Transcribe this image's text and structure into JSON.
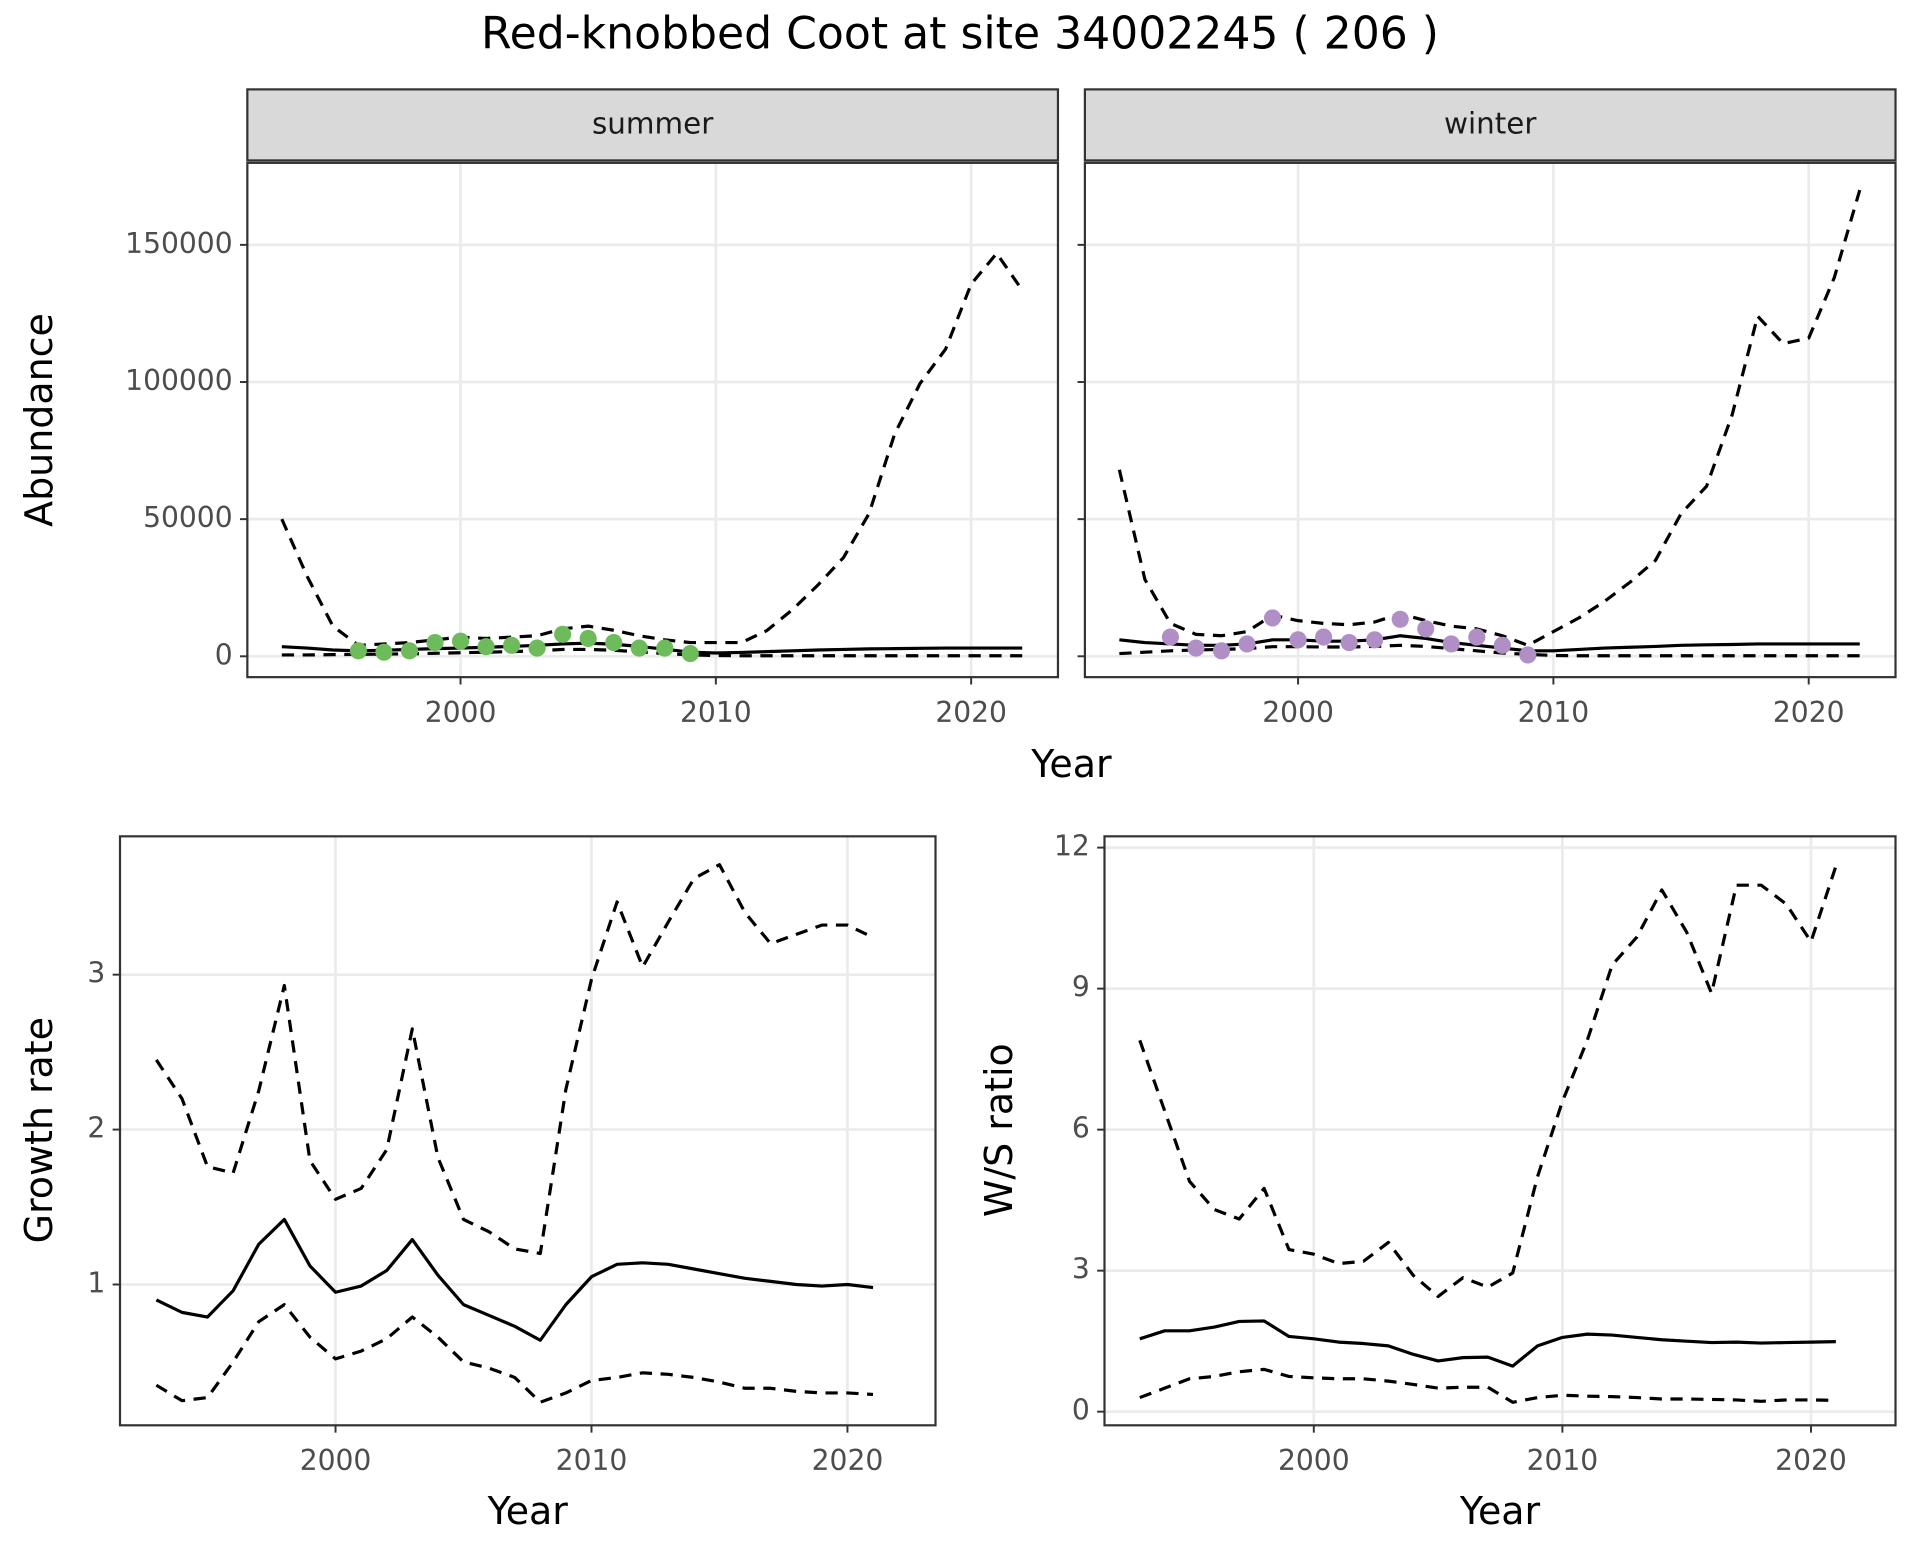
{
  "title": "Red-knobbed Coot at site 34002245 ( 206 )",
  "chart_data": [
    {
      "type": "line",
      "facet": "summer",
      "ylabel": "Abundance",
      "xlabel": "Year",
      "xlim": [
        1991.65,
        2023.4
      ],
      "xticks": [
        2000,
        2010,
        2020
      ],
      "ylim": [
        -7600,
        179900
      ],
      "yticks": [
        0,
        50000,
        100000,
        150000
      ],
      "grid": true,
      "x": [
        1993,
        1994,
        1995,
        1996,
        1997,
        1998,
        1999,
        2000,
        2001,
        2002,
        2003,
        2004,
        2005,
        2006,
        2007,
        2008,
        2009,
        2010,
        2011,
        2012,
        2013,
        2014,
        2015,
        2016,
        2017,
        2018,
        2019,
        2020,
        2021,
        2022
      ],
      "series": [
        {
          "color": "#000000",
          "dashed": false,
          "values": [
            3500,
            3000,
            2300,
            2000,
            2200,
            2500,
            2800,
            3000,
            3300,
            3600,
            4000,
            4500,
            4800,
            4400,
            3600,
            2600,
            1500,
            1200,
            1400,
            1700,
            2000,
            2300,
            2500,
            2700,
            2800,
            2900,
            3000,
            3000,
            3000,
            3000
          ]
        },
        {
          "color": "#000000",
          "dashed": true,
          "values": [
            50000,
            29000,
            11000,
            4000,
            4500,
            5000,
            6000,
            7000,
            6500,
            7000,
            7500,
            10000,
            11000,
            9500,
            7500,
            6000,
            5000,
            5000,
            5000,
            9400,
            17000,
            26000,
            36000,
            52000,
            81000,
            99500,
            112000,
            135700,
            146900,
            133500
          ]
        },
        {
          "color": "#000000",
          "dashed": true,
          "values": [
            500,
            500,
            600,
            700,
            800,
            900,
            1100,
            1300,
            1500,
            1700,
            2000,
            2500,
            2500,
            2200,
            1600,
            1000,
            500,
            300,
            200,
            200,
            200,
            200,
            200,
            200,
            200,
            200,
            200,
            200,
            200,
            200
          ]
        }
      ],
      "points": {
        "color": "#6dbb5a",
        "x": [
          1996,
          1997,
          1998,
          1999,
          2000,
          2001,
          2002,
          2003,
          2004,
          2005,
          2006,
          2007,
          2008,
          2009
        ],
        "values": [
          2000,
          1500,
          2000,
          5000,
          5500,
          3500,
          4000,
          3000,
          8000,
          6500,
          5000,
          3000,
          3000,
          1000
        ]
      }
    },
    {
      "type": "line",
      "facet": "winter",
      "xlim": [
        1991.65,
        2023.4
      ],
      "xticks": [
        2000,
        2010,
        2020
      ],
      "ylim": [
        -7600,
        179900
      ],
      "yticks": [
        0,
        50000,
        100000,
        150000
      ],
      "ytick_labels": false,
      "grid": true,
      "x": [
        1993,
        1994,
        1995,
        1996,
        1997,
        1998,
        1999,
        2000,
        2001,
        2002,
        2003,
        2004,
        2005,
        2006,
        2007,
        2008,
        2009,
        2010,
        2011,
        2012,
        2013,
        2014,
        2015,
        2016,
        2017,
        2018,
        2019,
        2020,
        2021,
        2022
      ],
      "series": [
        {
          "color": "#000000",
          "dashed": false,
          "values": [
            6000,
            5000,
            4500,
            4000,
            4000,
            4500,
            6000,
            6000,
            5500,
            5500,
            6000,
            7500,
            6500,
            5000,
            4000,
            3000,
            2000,
            2000,
            2500,
            3000,
            3300,
            3600,
            4000,
            4200,
            4300,
            4500,
            4500,
            4500,
            4500,
            4500
          ]
        },
        {
          "color": "#000000",
          "dashed": true,
          "values": [
            68000,
            28000,
            12000,
            8000,
            7500,
            9000,
            15000,
            13000,
            12000,
            11500,
            12500,
            15500,
            13000,
            11000,
            10000,
            7500,
            4000,
            9000,
            14000,
            20000,
            27000,
            35000,
            52000,
            62000,
            88000,
            124000,
            114000,
            116000,
            138000,
            170000
          ]
        },
        {
          "color": "#000000",
          "dashed": true,
          "values": [
            1000,
            1500,
            2000,
            2300,
            2500,
            2800,
            3500,
            3500,
            3400,
            3400,
            3600,
            4000,
            3600,
            2800,
            2000,
            1200,
            700,
            300,
            200,
            200,
            200,
            200,
            200,
            200,
            200,
            200,
            200,
            200,
            200,
            200
          ]
        }
      ],
      "points": {
        "color": "#b08fc7",
        "x": [
          1995,
          1996,
          1997,
          1998,
          1999,
          2000,
          2001,
          2002,
          2003,
          2004,
          2005,
          2006,
          2007,
          2008,
          2009
        ],
        "values": [
          7000,
          3000,
          2000,
          4500,
          14000,
          6000,
          7000,
          5000,
          6000,
          13500,
          10000,
          4500,
          7000,
          4000,
          500
        ]
      }
    },
    {
      "type": "line",
      "ylabel": "Growth rate",
      "xlabel": "Year",
      "xlim": [
        1991.58,
        2023.44
      ],
      "xticks": [
        2000,
        2010,
        2020
      ],
      "ylim": [
        0.091,
        3.893
      ],
      "yticks": [
        1,
        2,
        3
      ],
      "grid": true,
      "x": [
        1993,
        1994,
        1995,
        1996,
        1997,
        1998,
        1999,
        2000,
        2001,
        2002,
        2003,
        2004,
        2005,
        2006,
        2007,
        2008,
        2009,
        2010,
        2011,
        2012,
        2013,
        2014,
        2015,
        2016,
        2017,
        2018,
        2019,
        2020,
        2021
      ],
      "series": [
        {
          "color": "#000000",
          "dashed": false,
          "values": [
            0.9,
            0.82,
            0.79,
            0.96,
            1.26,
            1.42,
            1.12,
            0.95,
            0.99,
            1.09,
            1.29,
            1.06,
            0.87,
            0.8,
            0.73,
            0.64,
            0.87,
            1.05,
            1.13,
            1.14,
            1.13,
            1.1,
            1.07,
            1.04,
            1.02,
            1.0,
            0.99,
            1.0,
            0.98
          ]
        },
        {
          "color": "#000000",
          "dashed": true,
          "values": [
            2.45,
            2.2,
            1.76,
            1.72,
            2.25,
            2.93,
            1.8,
            1.55,
            1.62,
            1.87,
            2.65,
            1.82,
            1.42,
            1.34,
            1.23,
            1.2,
            2.26,
            2.97,
            3.47,
            3.05,
            3.34,
            3.62,
            3.71,
            3.4,
            3.2,
            3.26,
            3.32,
            3.32,
            3.24
          ]
        },
        {
          "color": "#000000",
          "dashed": true,
          "values": [
            0.35,
            0.25,
            0.27,
            0.5,
            0.76,
            0.87,
            0.66,
            0.52,
            0.57,
            0.65,
            0.79,
            0.66,
            0.5,
            0.46,
            0.4,
            0.24,
            0.3,
            0.38,
            0.4,
            0.43,
            0.42,
            0.4,
            0.37,
            0.33,
            0.33,
            0.31,
            0.3,
            0.3,
            0.29
          ]
        }
      ]
    },
    {
      "type": "line",
      "ylabel": "W/S ratio",
      "xlabel": "Year",
      "xlim": [
        1991.58,
        2023.4
      ],
      "xticks": [
        2000,
        2010,
        2020
      ],
      "ylim": [
        -0.29,
        12.24
      ],
      "yticks": [
        0,
        3,
        6,
        9,
        12
      ],
      "grid": true,
      "x": [
        1993,
        1994,
        1995,
        1996,
        1997,
        1998,
        1999,
        2000,
        2001,
        2002,
        2003,
        2004,
        2005,
        2006,
        2007,
        2008,
        2009,
        2010,
        2011,
        2012,
        2013,
        2014,
        2015,
        2016,
        2017,
        2018,
        2019,
        2020,
        2021
      ],
      "series": [
        {
          "color": "#000000",
          "dashed": false,
          "values": [
            1.55,
            1.72,
            1.72,
            1.8,
            1.92,
            1.93,
            1.6,
            1.55,
            1.48,
            1.45,
            1.4,
            1.22,
            1.08,
            1.15,
            1.16,
            0.97,
            1.4,
            1.58,
            1.65,
            1.63,
            1.58,
            1.53,
            1.5,
            1.47,
            1.48,
            1.46,
            1.47,
            1.48,
            1.49
          ]
        },
        {
          "color": "#000000",
          "dashed": true,
          "values": [
            7.9,
            6.4,
            4.9,
            4.3,
            4.1,
            4.75,
            3.45,
            3.35,
            3.15,
            3.2,
            3.6,
            2.9,
            2.45,
            2.85,
            2.65,
            2.95,
            5.0,
            6.6,
            7.9,
            9.5,
            10.1,
            11.1,
            10.2,
            8.9,
            11.2,
            11.2,
            10.8,
            10.0,
            11.6
          ]
        },
        {
          "color": "#000000",
          "dashed": true,
          "values": [
            0.3,
            0.5,
            0.7,
            0.75,
            0.85,
            0.9,
            0.75,
            0.72,
            0.7,
            0.7,
            0.65,
            0.58,
            0.5,
            0.52,
            0.52,
            0.2,
            0.3,
            0.35,
            0.33,
            0.32,
            0.3,
            0.27,
            0.27,
            0.26,
            0.25,
            0.22,
            0.25,
            0.25,
            0.24
          ]
        }
      ]
    }
  ]
}
